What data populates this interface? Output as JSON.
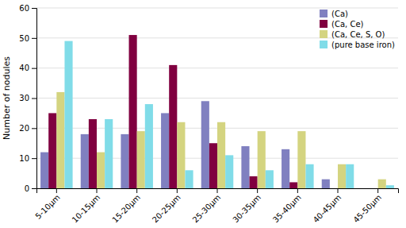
{
  "chart_data": {
    "type": "bar",
    "categories": [
      "5-10μm",
      "10-15μm",
      "15-20μm",
      "20-25μm",
      "25-30μm",
      "30-35μm",
      "35-40μm",
      "40-45μm",
      "45-50μm"
    ],
    "series": [
      {
        "name": "(Ca)",
        "color": "#8080c0",
        "values": [
          12,
          18,
          18,
          25,
          29,
          14,
          13,
          3,
          0
        ]
      },
      {
        "name": "(Ca, Ce)",
        "color": "#800040",
        "values": [
          25,
          23,
          51,
          41,
          15,
          4,
          2,
          0,
          0
        ]
      },
      {
        "name": "(Ca, Ce, S, O)",
        "color": "#d4d480",
        "values": [
          32,
          12,
          19,
          22,
          22,
          19,
          19,
          8,
          3
        ]
      },
      {
        "name": "(pure base iron)",
        "color": "#80dce8",
        "values": [
          49,
          23,
          28,
          6,
          11,
          6,
          8,
          8,
          1
        ]
      }
    ],
    "ylabel": "Number of nodules",
    "ylim": [
      0,
      60
    ],
    "yticks": [
      0,
      10,
      20,
      30,
      40,
      50,
      60
    ],
    "grid": true,
    "legend": "upper right"
  }
}
